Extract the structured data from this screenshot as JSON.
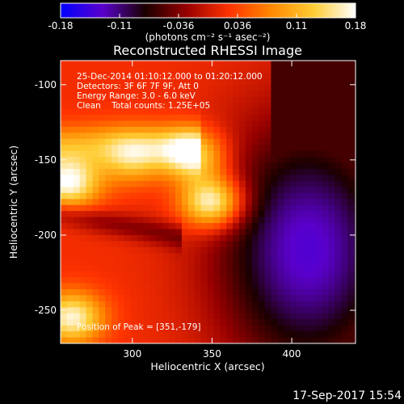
{
  "chart_data": {
    "type": "heatmap",
    "title": "Reconstructed RHESSI Image",
    "xlabel": "Heliocentric X (arcsec)",
    "ylabel": "Heliocentric Y (arcsec)",
    "xlim": [
      255,
      440
    ],
    "ylim": [
      -272,
      -84
    ],
    "x_ticks": [
      300,
      350,
      400
    ],
    "y_ticks": [
      -100,
      -150,
      -200,
      -250
    ],
    "colorbar": {
      "unit_label": "(photons cm⁻² s⁻¹ asec⁻²)",
      "range": [
        -0.18,
        0.18
      ],
      "ticks": [
        "-0.18",
        "-0.11",
        "-0.036",
        "0.036",
        "0.11",
        "0.18"
      ],
      "colormap": [
        "#0000ff",
        "#5a00cc",
        "#1a0000",
        "#990000",
        "#ff3300",
        "#ff8800",
        "#ffcc33",
        "#ffffff"
      ]
    },
    "annotations": [
      "25-Dec-2014 01:10:12.000 to 01:20:12.000",
      "Detectors: 3F 6F 7F 9F, Att 0",
      "Energy Range: 3.0 - 6.0 keV",
      "Clean    Total counts: 1.25E+05"
    ],
    "peak_label": "Position of Peak = [351,-179]",
    "peak": [
      351,
      -179
    ],
    "peak_value": 0.18,
    "bright_sources": [
      {
        "x": 350,
        "y": -178,
        "intensity": 0.18
      },
      {
        "x": 338,
        "y": -147,
        "intensity": 0.14
      },
      {
        "x": 260,
        "y": -165,
        "intensity": 0.16
      },
      {
        "x": 300,
        "y": -150,
        "intensity": 0.09
      },
      {
        "x": 262,
        "y": -255,
        "intensity": 0.15
      }
    ],
    "negative_region": {
      "x": 410,
      "y": -210,
      "intensity": -0.14
    }
  },
  "date_stamp": "17-Sep-2017 15:54"
}
